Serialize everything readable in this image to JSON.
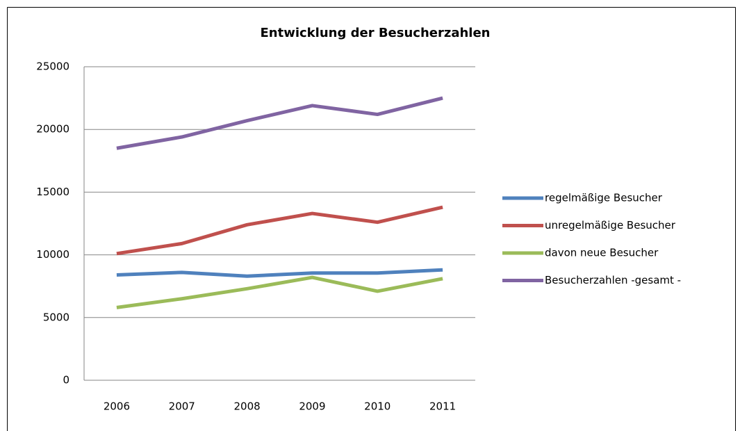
{
  "chart_data": {
    "type": "line",
    "title": "Entwicklung der Besucherzahlen",
    "categories": [
      "2006",
      "2007",
      "2008",
      "2009",
      "2010",
      "2011"
    ],
    "series": [
      {
        "name": "regelmäßige Besucher",
        "color": "#4f81bd",
        "values": [
          8400,
          8600,
          8300,
          8550,
          8550,
          8800
        ]
      },
      {
        "name": "unregelmäßige Besucher",
        "color": "#c0504d",
        "values": [
          10100,
          10900,
          12400,
          13300,
          12600,
          13800
        ]
      },
      {
        "name": "davon neue Besucher",
        "color": "#9bbb59",
        "values": [
          5800,
          6500,
          7300,
          8200,
          7100,
          8100
        ]
      },
      {
        "name": "Besucherzahlen -gesamt -",
        "color": "#8064a2",
        "values": [
          18500,
          19400,
          20700,
          21900,
          21200,
          22500
        ]
      }
    ],
    "ylim": [
      0,
      25000
    ],
    "yticks": [
      0,
      5000,
      10000,
      15000,
      20000,
      25000
    ],
    "grid": true,
    "legend": "right"
  }
}
